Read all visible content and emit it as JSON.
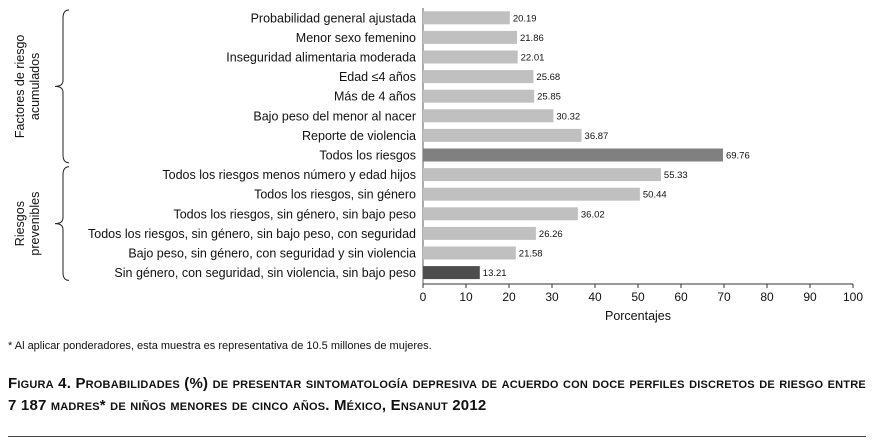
{
  "chart_data": {
    "type": "bar",
    "orientation": "horizontal",
    "categories": [
      "Probabilidad general ajustada",
      "Menor sexo femenino",
      "Inseguridad alimentaria moderada",
      "Edad ≤4 años",
      "Más de 4 años",
      "Bajo peso del menor al nacer",
      "Reporte de violencia",
      "Todos los riesgos",
      "Todos los riesgos menos número y edad hijos",
      "Todos los riesgos, sin género",
      "Todos los riesgos, sin género, sin bajo peso",
      "Todos los riesgos, sin género, sin bajo peso, con seguridad",
      "Bajo peso, sin género, con seguridad y sin violencia",
      "Sin género, con seguridad, sin violencia, sin bajo peso"
    ],
    "values": [
      20.19,
      21.86,
      22.01,
      25.68,
      25.85,
      30.32,
      36.87,
      69.76,
      55.33,
      50.44,
      36.02,
      26.26,
      21.58,
      13.21
    ],
    "value_labels": [
      "20.19",
      "21.86",
      "22.01",
      "25.68",
      "25.85",
      "30.32",
      "36.87",
      "69.76",
      "55.33",
      "50.44",
      "36.02",
      "26.26",
      "21.58",
      "13.21"
    ],
    "bar_colors": [
      "#c0c0c0",
      "#c0c0c0",
      "#c0c0c0",
      "#c0c0c0",
      "#c0c0c0",
      "#c0c0c0",
      "#c0c0c0",
      "#808080",
      "#c0c0c0",
      "#c0c0c0",
      "#c0c0c0",
      "#c0c0c0",
      "#c0c0c0",
      "#4d4d4d"
    ],
    "xlabel": "Porcentajes",
    "xlim": [
      0,
      100
    ],
    "xticks": [
      0,
      10,
      20,
      30,
      40,
      50,
      60,
      70,
      80,
      90,
      100
    ],
    "groups": [
      {
        "label_lines": [
          "Factores de riesgo",
          "acumulados"
        ],
        "start_index": 0,
        "end_index": 7
      },
      {
        "label_lines": [
          "Riesgos",
          "prevenibles"
        ],
        "start_index": 8,
        "end_index": 13
      }
    ]
  },
  "footnote": "* Al aplicar ponderadores, esta muestra es representativa de 10.5 millones de mujeres.",
  "caption": "Figura 4. Probabilidades (%) de presentar sintomatología depresiva de acuerdo con doce perfiles discretos de riesgo entre 7 187 madres* de niños menores de cinco años. México, Ensanut 2012"
}
